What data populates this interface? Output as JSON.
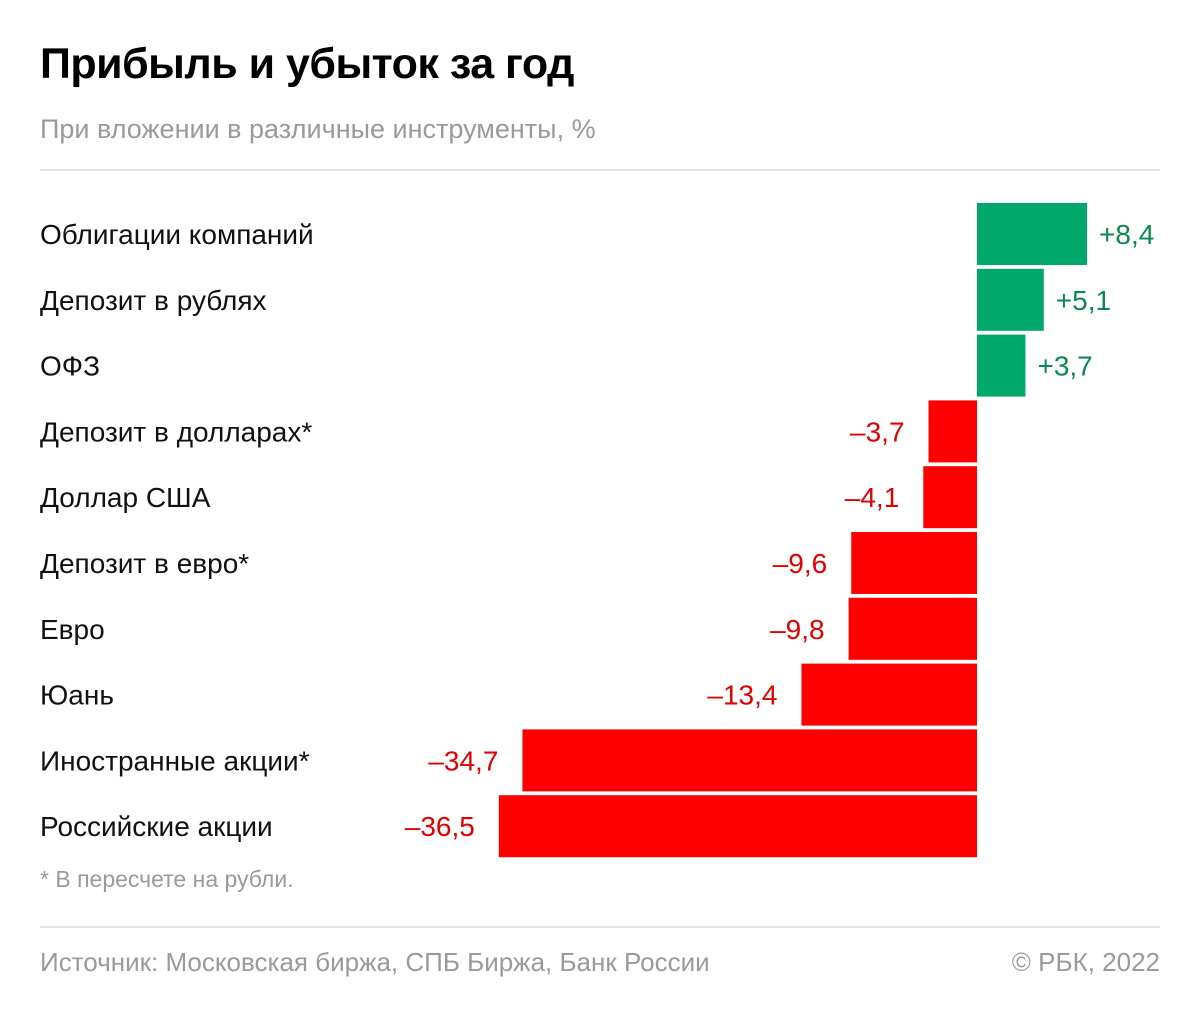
{
  "title": "Прибыль и убыток за год",
  "subtitle": "При вложении в различные инструменты, %",
  "footnote": "* В пересчете на рубли.",
  "source": "Источник: Московская биржа, СПБ Биржа, Банк России",
  "copyright": "© РБК, 2022",
  "colors": {
    "positive": "#00a86b",
    "negative": "#ff0000",
    "positive_text": "#0a8a50",
    "negative_text": "#e00000"
  },
  "chart_data": {
    "type": "bar",
    "orientation": "horizontal",
    "categories": [
      "Облигации компаний",
      "Депозит в рублях",
      "ОФЗ",
      "Депозит в долларах*",
      "Доллар США",
      "Депозит в евро*",
      "Евро",
      "Юань",
      "Иностранные акции*",
      "Российские акции"
    ],
    "values": [
      8.4,
      5.1,
      3.7,
      -3.7,
      -4.1,
      -9.6,
      -9.8,
      -13.4,
      -34.7,
      -36.5
    ],
    "labels": [
      "+8,4",
      "+5,1",
      "+3,7",
      "–3,7",
      "–4,1",
      "–9,6",
      "–9,8",
      "–13,4",
      "–34,7",
      "–36,5"
    ],
    "grid": false
  }
}
